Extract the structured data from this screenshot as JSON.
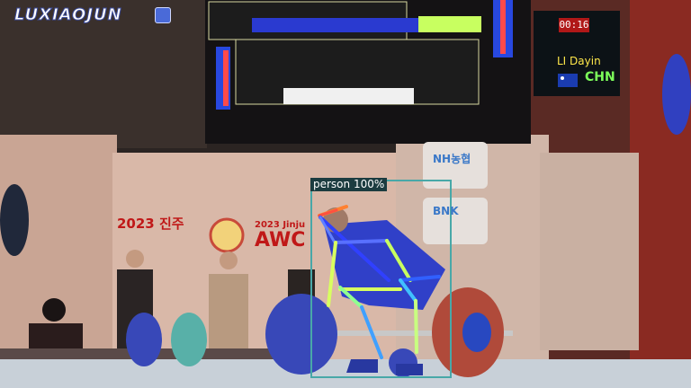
{
  "watermark": {
    "text": "LUXIAOJUN"
  },
  "detection": {
    "label": "person 100%"
  },
  "scoreboard": {
    "timer": "00:16",
    "athlete_name": "LI Dayin",
    "country": "CHN"
  },
  "banner": {
    "event_year_text": "2023 진주",
    "awc_small": "2023 Jinju",
    "awc_big": "AWC"
  },
  "sponsors": {
    "nh": "NH농협",
    "bnk": "BNK"
  },
  "colors": {
    "detection_box": "#48a8a8",
    "skeleton_warm": "#ff8030",
    "skeleton_cool": "#3040ff",
    "skeleton_mid": "#c8ff60"
  }
}
